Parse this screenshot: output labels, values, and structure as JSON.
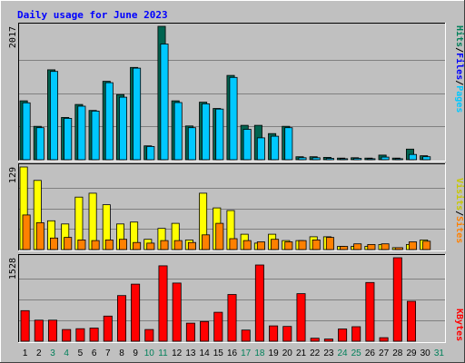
{
  "chart_data": {
    "type": "bar",
    "title": "Daily usage for June 2023",
    "days": [
      "1",
      "2",
      "3",
      "4",
      "5",
      "6",
      "7",
      "8",
      "9",
      "10",
      "11",
      "12",
      "13",
      "14",
      "15",
      "16",
      "17",
      "18",
      "19",
      "20",
      "21",
      "22",
      "23",
      "24",
      "25",
      "26",
      "27",
      "28",
      "29",
      "30",
      "31"
    ],
    "weekend_days": [
      3,
      4,
      10,
      11,
      17,
      18,
      24,
      25,
      31
    ],
    "colors": {
      "title": "#0000ff",
      "hits": "#006450",
      "files": "#00c8ff",
      "pages": "#00c8ff",
      "files_label": "#0000ff",
      "visits": "#ffff00",
      "sites": "#ff8000",
      "kbytes": "#ff0000",
      "plot_bg": "#c0c0c0",
      "gridline": "#808080",
      "weekday_text": "#000000",
      "weekend_text": "#00805a"
    },
    "panels": [
      {
        "id": "hits_files",
        "ymax_label": "2017",
        "ymax": 2017,
        "vertical_labels": [
          {
            "text": "Hits",
            "color": "#00805a"
          },
          {
            "text": "/",
            "color": "#000000"
          },
          {
            "text": "Files",
            "color": "#0000ff"
          },
          {
            "text": "/",
            "color": "#000000"
          },
          {
            "text": "Pages",
            "color": "#00c8ff"
          }
        ],
        "series": [
          {
            "name": "Hits",
            "color": "#006450",
            "values": [
              890,
              505,
              1360,
              640,
              835,
              745,
              1185,
              985,
              1395,
              210,
              2017,
              890,
              510,
              870,
              775,
              1275,
              520,
              520,
              395,
              505,
              45,
              45,
              35,
              25,
              30,
              25,
              70,
              25,
              160,
              60,
              0
            ]
          },
          {
            "name": "Files",
            "color": "#00c8ff",
            "values": [
              860,
              485,
              1335,
              625,
              810,
              735,
              1165,
              945,
              1385,
              200,
              1750,
              865,
              485,
              845,
              765,
              1245,
              460,
              330,
              355,
              485,
              30,
              30,
              20,
              15,
              20,
              15,
              40,
              15,
              80,
              45,
              0
            ]
          }
        ]
      },
      {
        "id": "visits_sites",
        "ymax_label": "129",
        "ymax": 129,
        "vertical_labels": [
          {
            "text": "Visits",
            "color": "#c8c800"
          },
          {
            "text": "/",
            "color": "#000000"
          },
          {
            "text": "Sites",
            "color": "#ff8000"
          }
        ],
        "series": [
          {
            "name": "Visits",
            "color": "#ffff00",
            "values": [
              129,
              108,
              45,
              40,
              82,
              88,
              70,
              40,
              43,
              16,
              33,
              41,
              15,
              88,
              65,
              61,
              24,
              10,
              24,
              14,
              14,
              20,
              20,
              5,
              5,
              5,
              8,
              3,
              8,
              15,
              0
            ]
          },
          {
            "name": "Sites",
            "color": "#ff8000",
            "values": [
              54,
              42,
              18,
              19,
              15,
              14,
              15,
              16,
              11,
              10,
              14,
              14,
              11,
              23,
              41,
              17,
              14,
              12,
              16,
              12,
              14,
              15,
              19,
              5,
              9,
              8,
              9,
              3,
              12,
              13,
              0
            ]
          }
        ]
      },
      {
        "id": "kbytes",
        "ymax_label": "1528",
        "ymax": 1528,
        "vertical_labels": [
          {
            "text": "KBytes",
            "color": "#ff0000"
          }
        ],
        "series": [
          {
            "name": "KBytes",
            "color": "#ff0000",
            "values": [
              560,
              385,
              385,
              215,
              230,
              240,
              460,
              835,
              1045,
              215,
              1380,
              1065,
              330,
              360,
              530,
              855,
              205,
              1395,
              280,
              270,
              870,
              55,
              40,
              225,
              265,
              1075,
              65,
              1528,
              730,
              0,
              0
            ]
          }
        ]
      }
    ]
  }
}
